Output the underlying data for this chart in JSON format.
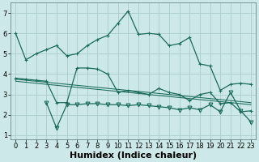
{
  "background_color": "#cce8e8",
  "grid_color": "#aacccc",
  "line_color": "#1a6b5a",
  "marker_color": "#1a6b5a",
  "xlabel": "Humidex (Indice chaleur)",
  "xlabel_fontsize": 8,
  "xlim": [
    -0.5,
    23.5
  ],
  "ylim": [
    0.8,
    7.5
  ],
  "yticks": [
    1,
    2,
    3,
    4,
    5,
    6,
    7
  ],
  "xticks": [
    0,
    1,
    2,
    3,
    4,
    5,
    6,
    7,
    8,
    9,
    10,
    11,
    12,
    13,
    14,
    15,
    16,
    17,
    18,
    19,
    20,
    21,
    22,
    23
  ],
  "series1_x": [
    0,
    1,
    2,
    3,
    4,
    5,
    6,
    7,
    8,
    9,
    10,
    11,
    12,
    13,
    14,
    15,
    16,
    17,
    18,
    19,
    20,
    21,
    22,
    23
  ],
  "series1_y": [
    6.0,
    4.7,
    5.0,
    5.2,
    5.4,
    4.9,
    5.0,
    5.4,
    5.7,
    5.9,
    6.5,
    7.1,
    5.95,
    6.0,
    5.95,
    5.4,
    5.5,
    5.8,
    4.5,
    4.4,
    3.2,
    3.5,
    3.55,
    3.5
  ],
  "series2_x": [
    0,
    1,
    2,
    3,
    4,
    5,
    6,
    7,
    8,
    9,
    10,
    11,
    12,
    13,
    14,
    15,
    16,
    17,
    18,
    19,
    20,
    21,
    22,
    23
  ],
  "series2_y": [
    3.8,
    3.75,
    3.7,
    3.65,
    2.6,
    2.6,
    4.3,
    4.3,
    4.25,
    4.0,
    3.1,
    3.2,
    3.1,
    3.0,
    3.3,
    3.1,
    3.0,
    2.7,
    3.0,
    3.1,
    2.55,
    2.6,
    2.15,
    2.2
  ],
  "series3_x": [
    0,
    23
  ],
  "series3_y": [
    3.75,
    2.6
  ],
  "series4_x": [
    0,
    23
  ],
  "series4_y": [
    3.65,
    2.5
  ],
  "series5_x": [
    3,
    4,
    5,
    6,
    7,
    8,
    9,
    10,
    11,
    12,
    13,
    14,
    15,
    16,
    17,
    18,
    19,
    20,
    21,
    22,
    23
  ],
  "series5_y": [
    2.6,
    1.35,
    2.5,
    2.5,
    2.55,
    2.55,
    2.5,
    2.5,
    2.45,
    2.5,
    2.45,
    2.4,
    2.35,
    2.25,
    2.35,
    2.25,
    2.5,
    2.15,
    3.1,
    2.2,
    1.65
  ]
}
